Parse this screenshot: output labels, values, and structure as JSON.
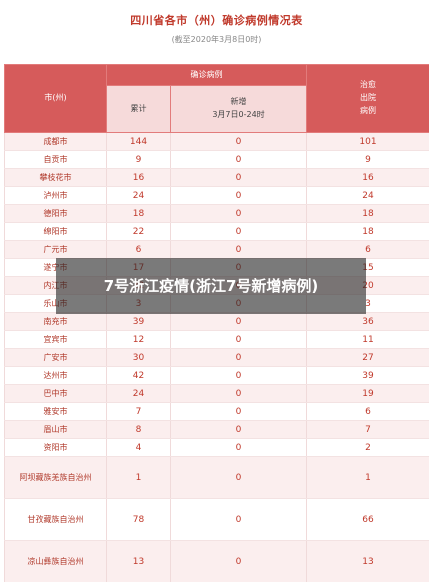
{
  "header": {
    "title": "四川省各市（州）确诊病例情况表",
    "subtitle": "(截至2020年3月8日0时)"
  },
  "table": {
    "col_city": "市(州)",
    "col_confirmed_group": "确诊病例",
    "col_cumulative": "累计",
    "col_new": "新增",
    "col_new_period": "3月7日0-24时",
    "col_discharged_line1": "治愈",
    "col_discharged_line2": "出院",
    "col_discharged_line3": "病例",
    "rows": [
      {
        "city": "成都市",
        "cumulative": "144",
        "new": "0",
        "discharged": "101"
      },
      {
        "city": "自贡市",
        "cumulative": "9",
        "new": "0",
        "discharged": "9"
      },
      {
        "city": "攀枝花市",
        "cumulative": "16",
        "new": "0",
        "discharged": "16"
      },
      {
        "city": "泸州市",
        "cumulative": "24",
        "new": "0",
        "discharged": "24"
      },
      {
        "city": "德阳市",
        "cumulative": "18",
        "new": "0",
        "discharged": "18"
      },
      {
        "city": "绵阳市",
        "cumulative": "22",
        "new": "0",
        "discharged": "18"
      },
      {
        "city": "广元市",
        "cumulative": "6",
        "new": "0",
        "discharged": "6"
      },
      {
        "city": "遂宁市",
        "cumulative": "17",
        "new": "0",
        "discharged": "15"
      },
      {
        "city": "内江市",
        "cumulative": "22",
        "new": "0",
        "discharged": "20"
      },
      {
        "city": "乐山市",
        "cumulative": "3",
        "new": "0",
        "discharged": "3"
      },
      {
        "city": "南充市",
        "cumulative": "39",
        "new": "0",
        "discharged": "36"
      },
      {
        "city": "宜宾市",
        "cumulative": "12",
        "new": "0",
        "discharged": "11"
      },
      {
        "city": "广安市",
        "cumulative": "30",
        "new": "0",
        "discharged": "27"
      },
      {
        "city": "达州市",
        "cumulative": "42",
        "new": "0",
        "discharged": "39"
      },
      {
        "city": "巴中市",
        "cumulative": "24",
        "new": "0",
        "discharged": "19"
      },
      {
        "city": "雅安市",
        "cumulative": "7",
        "new": "0",
        "discharged": "6"
      },
      {
        "city": "眉山市",
        "cumulative": "8",
        "new": "0",
        "discharged": "7"
      },
      {
        "city": "资阳市",
        "cumulative": "4",
        "new": "0",
        "discharged": "2"
      },
      {
        "city": "阿坝藏族羌族自治州",
        "cumulative": "1",
        "new": "0",
        "discharged": "1"
      },
      {
        "city": "甘孜藏族自治州",
        "cumulative": "78",
        "new": "0",
        "discharged": "66"
      },
      {
        "city": "凉山彝族自治州",
        "cumulative": "13",
        "new": "0",
        "discharged": "13"
      }
    ]
  },
  "overlay": {
    "caption": "7号浙江疫情(浙江7号新增病例)"
  }
}
